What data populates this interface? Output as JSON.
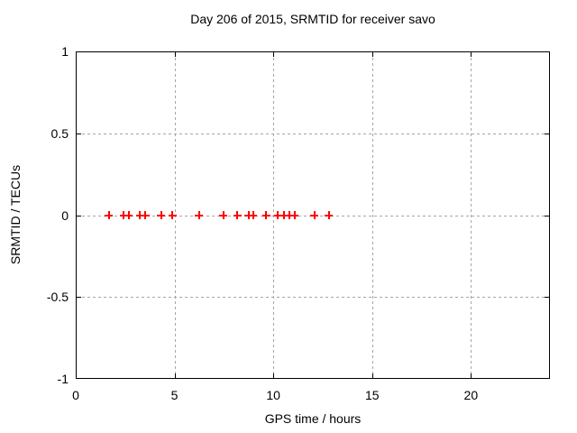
{
  "colors": {
    "background": "#ffffff",
    "axis": "#000000",
    "grid": "#a6a6a6",
    "marker": "#ff0000"
  },
  "chart_data": {
    "type": "scatter",
    "title": "Day 206 of 2015, SRMTID for receiver savo",
    "xlabel": "GPS time / hours",
    "ylabel": "SRMTID / TECUs",
    "xlim": [
      0,
      24
    ],
    "ylim": [
      -1,
      1
    ],
    "xticks": [
      0,
      5,
      10,
      15,
      20
    ],
    "xtick_labels": [
      "0",
      "5",
      "10",
      "15",
      "20"
    ],
    "yticks": [
      1,
      0.5,
      0,
      -0.5,
      -1
    ],
    "ytick_labels": [
      "1",
      "0.5",
      "0",
      "-0.5",
      "-1"
    ],
    "grid": true,
    "legend": "none",
    "series": [
      {
        "name": "SRMTID",
        "marker": "plus",
        "color": "#ff0000",
        "x": [
          1.67,
          2.43,
          2.69,
          3.24,
          3.53,
          4.33,
          4.9,
          6.24,
          7.48,
          8.17,
          8.75,
          8.97,
          9.63,
          10.23,
          10.52,
          10.8,
          11.07,
          12.09,
          12.82
        ],
        "y": [
          0,
          0,
          0,
          0,
          0,
          0,
          0,
          0,
          0,
          0,
          0,
          0,
          0,
          0,
          0,
          0,
          0,
          0,
          0
        ]
      }
    ]
  }
}
